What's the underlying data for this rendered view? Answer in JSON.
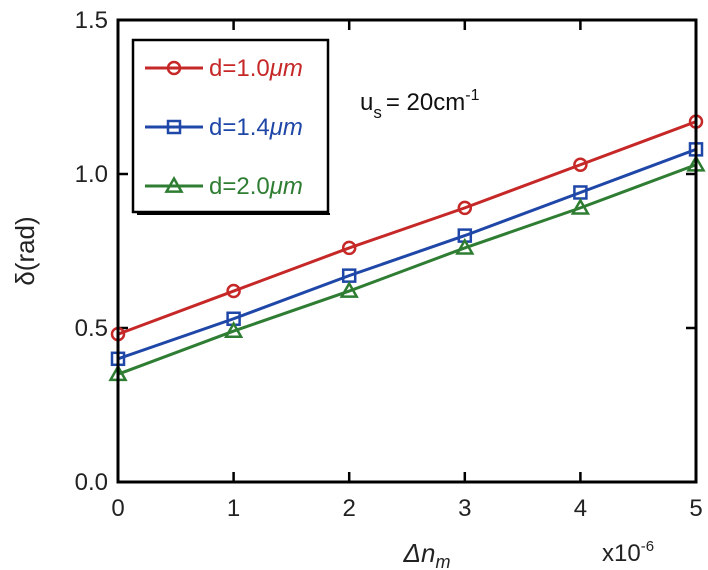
{
  "chart_data": {
    "type": "line",
    "title": "",
    "xlabel": "Δn",
    "xlabel_subscript": "m",
    "ylabel": "δ(rad)",
    "x_multiplier": "x10",
    "x_multiplier_exp": "-6",
    "xlim": [
      0,
      5
    ],
    "ylim": [
      0.0,
      1.5
    ],
    "xticks": [
      "0",
      "1",
      "2",
      "3",
      "4",
      "5"
    ],
    "yticks": [
      "0.0",
      "0.5",
      "1.0",
      "1.5"
    ],
    "ytick_values": [
      0.0,
      0.5,
      1.0,
      1.5
    ],
    "grid": false,
    "legend_position": "top-left",
    "annotation": {
      "base": "u",
      "subscript": "s",
      "text": "= 20cm",
      "exponent": "-1"
    },
    "x": [
      0,
      1,
      2,
      3,
      4,
      5
    ],
    "series": [
      {
        "name": "d=1.0μm",
        "name_prefix": "d=1.0",
        "name_unit": "μm",
        "color": "#c62828",
        "marker": "circle",
        "values": [
          0.48,
          0.62,
          0.76,
          0.89,
          1.03,
          1.17
        ]
      },
      {
        "name": "d=1.4μm",
        "name_prefix": "d=1.4",
        "name_unit": "μm",
        "color": "#1f47a8",
        "marker": "square",
        "values": [
          0.4,
          0.53,
          0.67,
          0.8,
          0.94,
          1.08
        ]
      },
      {
        "name": "d=2.0μm",
        "name_prefix": "d=2.0",
        "name_unit": "μm",
        "color": "#2e7d32",
        "marker": "triangle",
        "values": [
          0.35,
          0.49,
          0.62,
          0.76,
          0.89,
          1.03
        ]
      }
    ]
  }
}
